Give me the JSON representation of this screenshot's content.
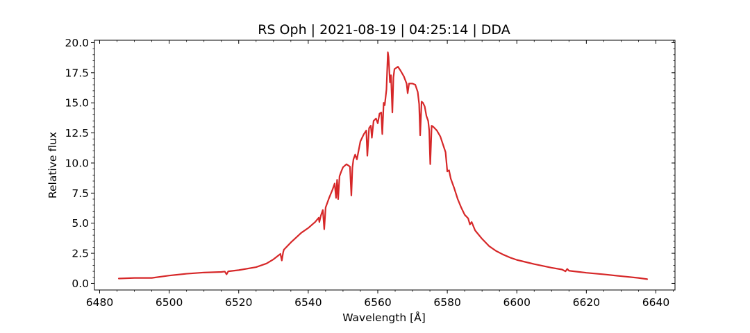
{
  "chart_data": {
    "type": "line",
    "title": "RS Oph | 2021-08-19 | 04:25:14 | DDA",
    "xlabel": "Wavelength [Å]",
    "ylabel": "Relative flux",
    "xlim": [
      6478.5,
      6645.5
    ],
    "ylim": [
      -0.55,
      20.2
    ],
    "xticks": [
      6480,
      6500,
      6520,
      6540,
      6560,
      6580,
      6600,
      6620,
      6640
    ],
    "yticks": [
      0.0,
      2.5,
      5.0,
      7.5,
      10.0,
      12.5,
      15.0,
      17.5,
      20.0
    ],
    "xtick_labels": [
      "6480",
      "6500",
      "6520",
      "6540",
      "6560",
      "6580",
      "6600",
      "6620",
      "6640"
    ],
    "ytick_labels": [
      "0.0",
      "2.5",
      "5.0",
      "7.5",
      "10.0",
      "12.5",
      "15.0",
      "17.5",
      "20.0"
    ],
    "grid": false,
    "series": [
      {
        "color": "#d62728",
        "x": [
          6485.5,
          6490,
          6495,
          6500,
          6505,
          6510,
          6515,
          6516,
          6516.5,
          6517,
          6520,
          6525,
          6528,
          6530,
          6532,
          6532.4,
          6532.8,
          6533,
          6535,
          6538,
          6540,
          6542,
          6543,
          6543.2,
          6543.6,
          6544.2,
          6544.6,
          6545,
          6546,
          6547,
          6547.6,
          6548,
          6548.3,
          6548.6,
          6549,
          6549.5,
          6550,
          6551,
          6552,
          6552.4,
          6552.7,
          6553,
          6553.5,
          6554,
          6555,
          6556,
          6556.7,
          6557,
          6557.5,
          6558,
          6558.3,
          6558.8,
          6559.5,
          6560,
          6560.5,
          6561,
          6561.3,
          6561.7,
          6562,
          6562.5,
          6562.9,
          6563.1,
          6563.5,
          6563.8,
          6564.2,
          6564.5,
          6564.8,
          6565.3,
          6565.8,
          6566.5,
          6567.5,
          6568.3,
          6568.6,
          6569,
          6570,
          6570.8,
          6571.5,
          6571.9,
          6572.2,
          6572.6,
          6573,
          6573.5,
          6574,
          6574.5,
          6574.8,
          6575.1,
          6575.5,
          6576,
          6577,
          6578,
          6579.5,
          6580,
          6580.5,
          6581,
          6582,
          6583,
          6584,
          6585,
          6586,
          6586.5,
          6587,
          6588,
          6590,
          6592,
          6594,
          6596,
          6598,
          6600,
          6605,
          6610,
          6613,
          6614,
          6614.5,
          6615,
          6618,
          6620,
          6625,
          6630,
          6635,
          6637.5
        ],
        "y": [
          0.4,
          0.45,
          0.45,
          0.65,
          0.8,
          0.9,
          0.95,
          0.98,
          0.75,
          1.0,
          1.1,
          1.35,
          1.65,
          2.0,
          2.45,
          1.9,
          2.6,
          2.8,
          3.4,
          4.2,
          4.6,
          5.1,
          5.45,
          5.1,
          5.6,
          6.1,
          4.5,
          6.3,
          7.1,
          7.8,
          8.3,
          7.1,
          8.6,
          7.0,
          8.9,
          9.3,
          9.65,
          9.9,
          9.7,
          7.3,
          9.6,
          10.3,
          10.7,
          10.3,
          11.8,
          12.4,
          12.7,
          10.6,
          12.9,
          13.1,
          12.1,
          13.5,
          13.7,
          13.3,
          14.1,
          14.2,
          12.4,
          15.0,
          14.8,
          16.1,
          19.2,
          18.8,
          16.7,
          17.3,
          14.2,
          17.1,
          17.8,
          17.9,
          18.0,
          17.7,
          17.2,
          16.6,
          15.8,
          16.6,
          16.6,
          16.5,
          15.9,
          14.9,
          12.3,
          15.1,
          15.0,
          14.7,
          13.9,
          13.5,
          12.7,
          9.9,
          13.1,
          13.0,
          12.7,
          12.2,
          10.9,
          9.3,
          9.4,
          8.7,
          7.9,
          7.0,
          6.3,
          5.7,
          5.4,
          4.9,
          5.1,
          4.4,
          3.7,
          3.1,
          2.7,
          2.4,
          2.15,
          1.95,
          1.6,
          1.3,
          1.15,
          1.0,
          1.2,
          1.05,
          0.95,
          0.88,
          0.75,
          0.6,
          0.45,
          0.35
        ]
      }
    ]
  }
}
